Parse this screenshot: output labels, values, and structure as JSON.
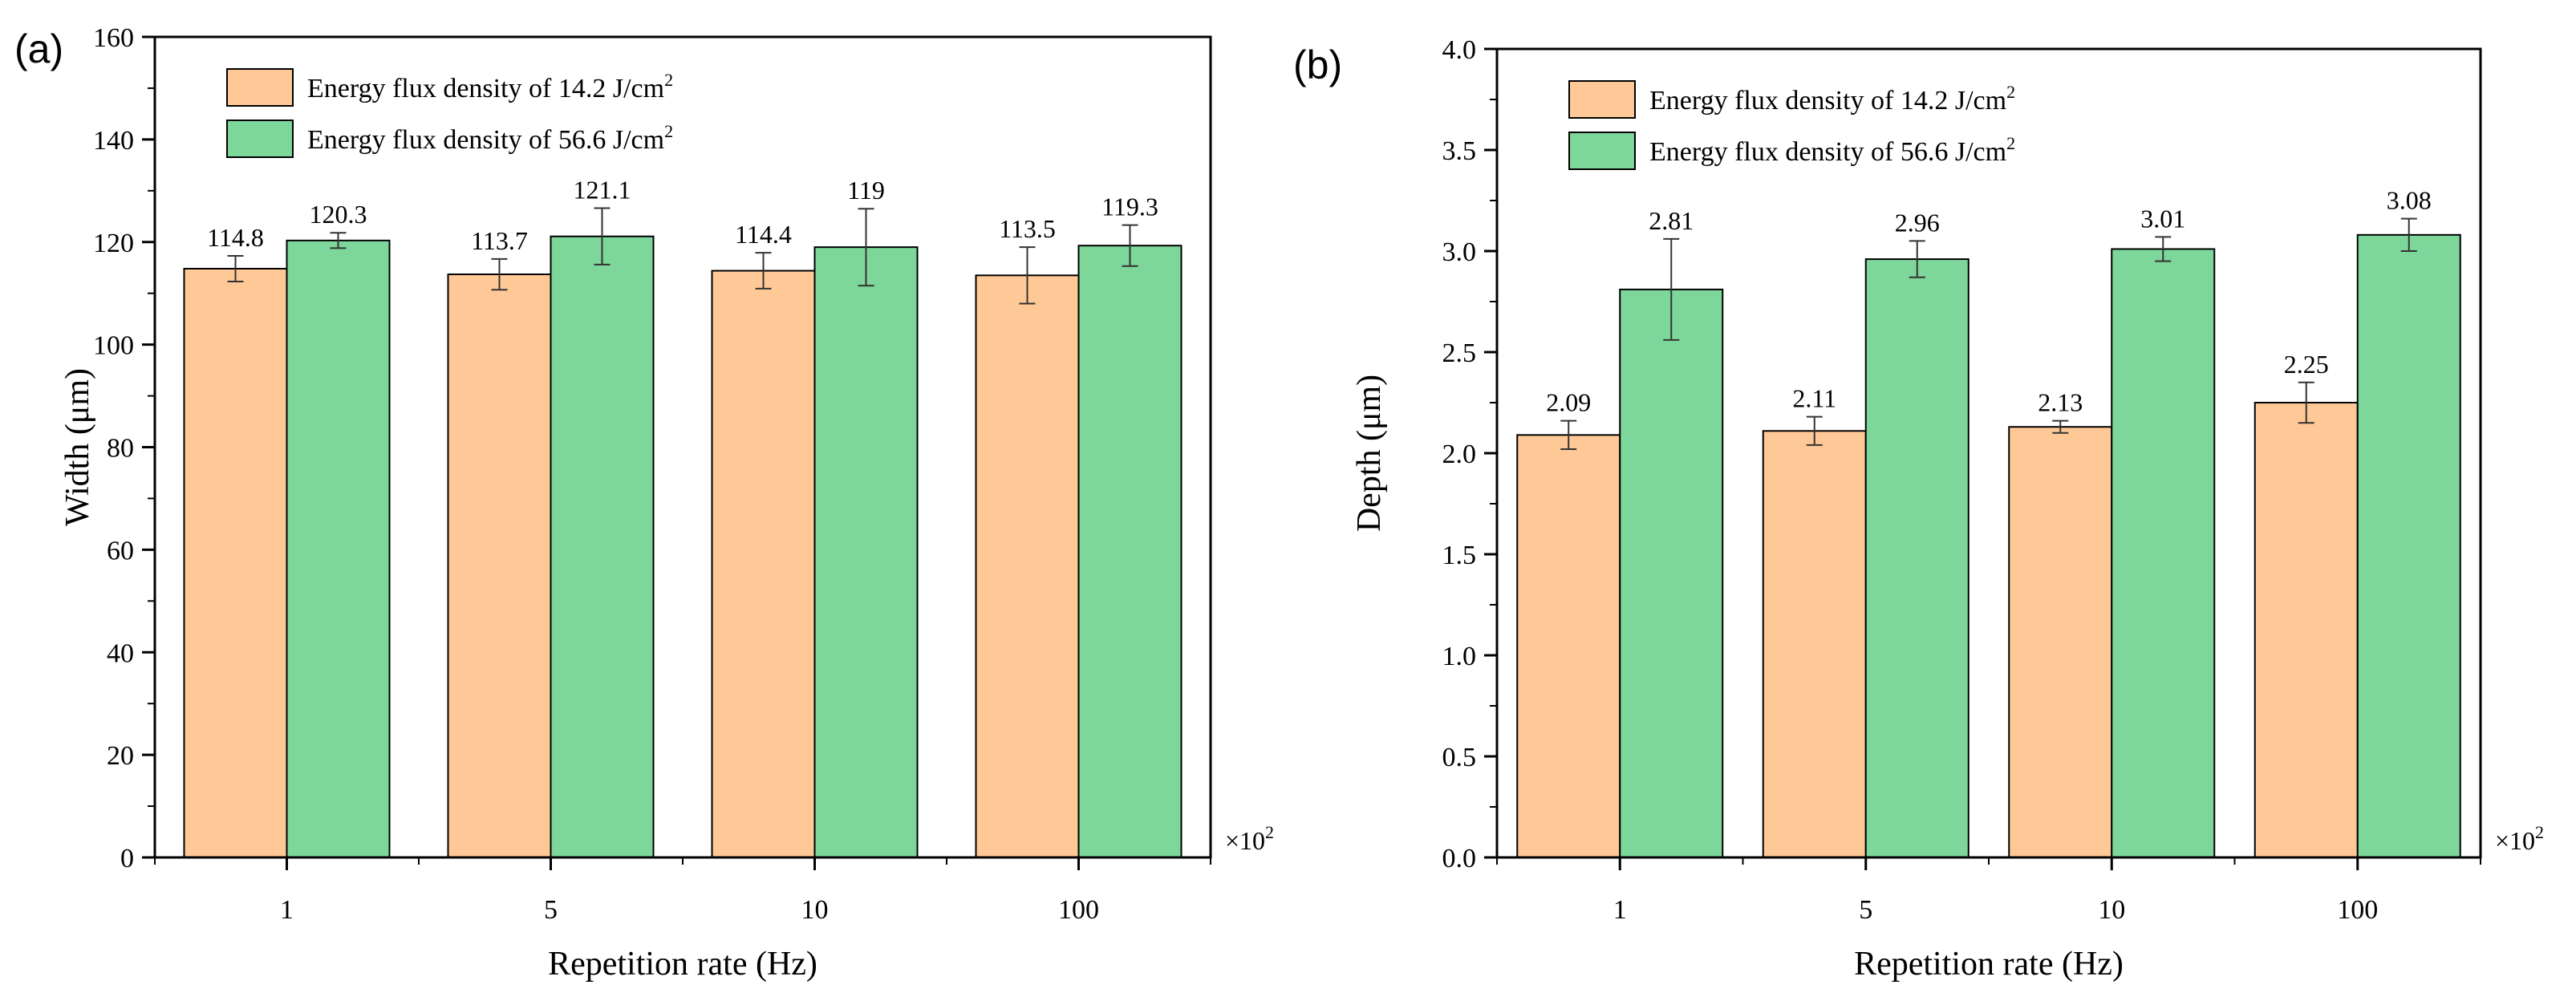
{
  "colors": {
    "series1": "#ffc997",
    "series2": "#7dd69a",
    "axis": "#000000",
    "error_bar": "#333333"
  },
  "chart_data": [
    {
      "type": "bar",
      "panel_label": "(a)",
      "categories": [
        "1",
        "5",
        "10",
        "100"
      ],
      "series": [
        {
          "name": "Energy flux density of 14.2 J/cm",
          "superscript": "2",
          "values": [
            114.8,
            113.7,
            114.4,
            113.5
          ],
          "errors": [
            2.5,
            3.0,
            3.5,
            5.5
          ],
          "labels": [
            "114.8",
            "113.7",
            "114.4",
            "113.5"
          ]
        },
        {
          "name": "Energy flux density of 56.6 J/cm",
          "superscript": "2",
          "values": [
            120.3,
            121.1,
            119.0,
            119.3
          ],
          "errors": [
            1.5,
            5.5,
            7.5,
            4.0
          ],
          "labels": [
            "120.3",
            "121.1",
            "119",
            "119.3"
          ]
        }
      ],
      "xlabel": "Repetition rate (Hz)",
      "ylabel": "Width (μm)",
      "ylim": [
        0,
        160
      ],
      "yticks": [
        0,
        20,
        40,
        60,
        80,
        100,
        120,
        140,
        160
      ],
      "ytick_labels": [
        "0",
        "20",
        "40",
        "60",
        "80",
        "100",
        "120",
        "140",
        "160"
      ],
      "x_multiplier": "×10",
      "x_multiplier_exp": "2",
      "legend": "top-left"
    },
    {
      "type": "bar",
      "panel_label": "(b)",
      "categories": [
        "1",
        "5",
        "10",
        "100"
      ],
      "series": [
        {
          "name": "Energy flux density of 14.2 J/cm",
          "superscript": "2",
          "values": [
            2.09,
            2.11,
            2.13,
            2.25
          ],
          "errors": [
            0.07,
            0.07,
            0.03,
            0.1
          ],
          "labels": [
            "2.09",
            "2.11",
            "2.13",
            "2.25"
          ]
        },
        {
          "name": "Energy flux density of 56.6 J/cm",
          "superscript": "2",
          "values": [
            2.81,
            2.96,
            3.01,
            3.08
          ],
          "errors": [
            0.25,
            0.09,
            0.06,
            0.08
          ],
          "labels": [
            "2.81",
            "2.96",
            "3.01",
            "3.08"
          ]
        }
      ],
      "xlabel": "Repetition rate (Hz)",
      "ylabel": "Depth (μm)",
      "ylim": [
        0,
        4
      ],
      "yticks": [
        0,
        0.5,
        1,
        1.5,
        2,
        2.5,
        3,
        3.5,
        4
      ],
      "ytick_labels": [
        "0.0",
        "0.5",
        "1.0",
        "1.5",
        "2.0",
        "2.5",
        "3.0",
        "3.5",
        "4.0"
      ],
      "x_multiplier": "×10",
      "x_multiplier_exp": "2",
      "legend": "top-left"
    }
  ]
}
